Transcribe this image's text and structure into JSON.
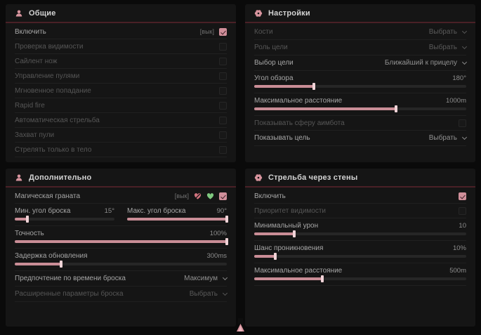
{
  "colors": {
    "accent_pink": "#d8949e",
    "checkbox_checked": "#d08f9a",
    "slider_fill": "#c98d96",
    "heart_pink": "#d2737e",
    "heart_green": "#7fc87f",
    "panel_bg": "#151515"
  },
  "panels": {
    "general": {
      "title": "Общие",
      "icon": "person-icon",
      "rows": [
        {
          "type": "checkbox",
          "label": "Включить",
          "tag": "[вык]",
          "checked": true,
          "enabled": true
        },
        {
          "type": "checkbox",
          "label": "Проверка видимости",
          "checked": false,
          "enabled": false
        },
        {
          "type": "checkbox",
          "label": "Сайлент нож",
          "checked": false,
          "enabled": false
        },
        {
          "type": "checkbox",
          "label": "Управление пулями",
          "checked": false,
          "enabled": false
        },
        {
          "type": "checkbox",
          "label": "Мгновенное попадание",
          "checked": false,
          "enabled": false
        },
        {
          "type": "checkbox",
          "label": "Rapid fire",
          "checked": false,
          "enabled": false
        },
        {
          "type": "checkbox",
          "label": "Автоматическая стрельба",
          "checked": false,
          "enabled": false
        },
        {
          "type": "checkbox",
          "label": "Захват пули",
          "checked": false,
          "enabled": false
        },
        {
          "type": "checkbox",
          "label": "Стрелять только в тело",
          "checked": false,
          "enabled": false
        }
      ]
    },
    "settings": {
      "title": "Настройки",
      "icon": "gear-icon",
      "rows": [
        {
          "type": "dropdown",
          "label": "Кости",
          "value": "Выбрать",
          "enabled": false
        },
        {
          "type": "dropdown",
          "label": "Роль цели",
          "value": "Выбрать",
          "enabled": false
        },
        {
          "type": "dropdown",
          "label": "Выбор цели",
          "value": "Ближайший к прицелу",
          "enabled": true
        },
        {
          "type": "slider",
          "label": "Угол обзора",
          "value": "180°",
          "percent": 28,
          "enabled": true
        },
        {
          "type": "slider",
          "label": "Максимальное расстояние",
          "value": "1000m",
          "percent": 67,
          "enabled": true
        },
        {
          "type": "checkbox",
          "label": "Показывать сферу аимбота",
          "checked": false,
          "enabled": false
        },
        {
          "type": "dropdown",
          "label": "Показывать цель",
          "value": "Выбрать",
          "enabled": true
        }
      ]
    },
    "additional": {
      "title": "Дополнительно",
      "icon": "person-icon",
      "rows": [
        {
          "type": "grenade",
          "label": "Магическая граната",
          "tag": "[вык]",
          "checked": true,
          "enabled": true,
          "icons": [
            "broken-heart-icon",
            "green-heart-icon"
          ]
        },
        {
          "type": "sliderpair",
          "left": {
            "label": "Мин. угол броска",
            "value": "15°",
            "percent": 13
          },
          "right": {
            "label": "Макс. угол броска",
            "value": "90°",
            "percent": 100
          },
          "enabled": true
        },
        {
          "type": "slider",
          "label": "Точность",
          "value": "100%",
          "percent": 100,
          "enabled": true
        },
        {
          "type": "slider",
          "label": "Задержка обновления",
          "value": "300ms",
          "percent": 22,
          "enabled": true
        },
        {
          "type": "dropdown",
          "label": "Предпочтение по времени броска",
          "value": "Максимум",
          "enabled": true
        },
        {
          "type": "dropdown",
          "label": "Расширенные параметры броска",
          "value": "Выбрать",
          "enabled": false
        }
      ]
    },
    "walls": {
      "title": "Стрельба через стены",
      "icon": "gear-icon",
      "rows": [
        {
          "type": "checkbox",
          "label": "Включить",
          "checked": true,
          "enabled": true
        },
        {
          "type": "checkbox",
          "label": "Приоритет видимости",
          "checked": false,
          "enabled": false
        },
        {
          "type": "slider",
          "label": "Минимальный урон",
          "value": "10",
          "percent": 19,
          "enabled": true
        },
        {
          "type": "slider",
          "label": "Шанс проникновения",
          "value": "10%",
          "percent": 10,
          "enabled": true
        },
        {
          "type": "slider",
          "label": "Максимальное расстояние",
          "value": "500m",
          "percent": 32,
          "enabled": true
        }
      ]
    }
  }
}
